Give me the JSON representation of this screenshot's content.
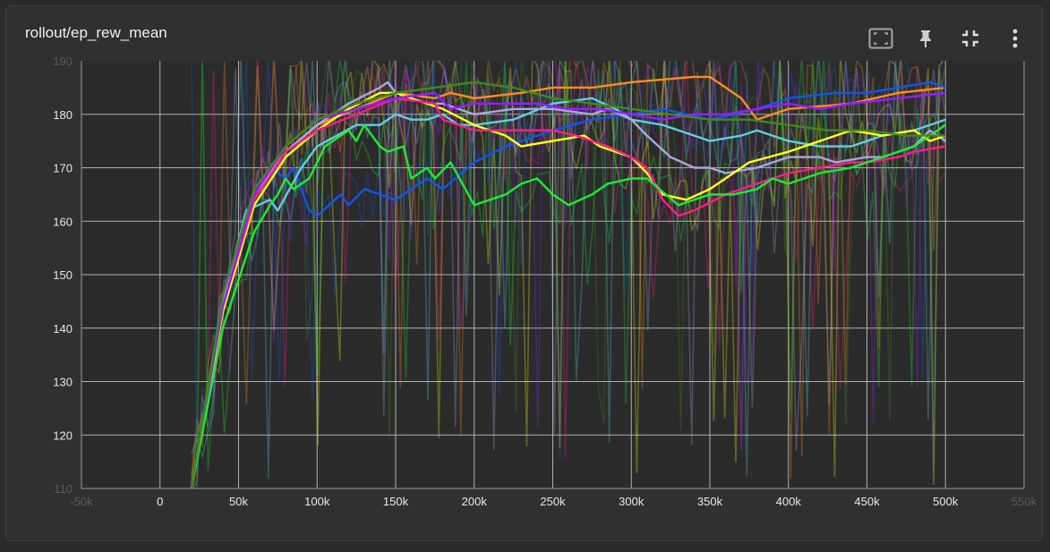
{
  "card": {
    "title": "rollout/ep_rew_mean",
    "tools": [
      {
        "name": "fit-domain-button",
        "icon": "fit-to-screen-icon"
      },
      {
        "name": "pin-button",
        "icon": "pin-icon"
      },
      {
        "name": "collapse-button",
        "icon": "fullscreen-exit-icon"
      },
      {
        "name": "more-menu-button",
        "icon": "more-vert-icon"
      }
    ]
  },
  "colors": {
    "background": "#303030",
    "plot_background": "#2b2b2b",
    "grid": "#b0b0b0",
    "tick_text": "#e8e8e8"
  },
  "chart_data": {
    "type": "line",
    "title": "rollout/ep_rew_mean",
    "xlim": [
      -50000,
      550000
    ],
    "ylim": [
      110,
      190
    ],
    "x_ticks": [
      {
        "value": -50000,
        "label": "-50k",
        "faded": true
      },
      {
        "value": 0,
        "label": "0"
      },
      {
        "value": 50000,
        "label": "50k"
      },
      {
        "value": 100000,
        "label": "100k"
      },
      {
        "value": 150000,
        "label": "150k"
      },
      {
        "value": 200000,
        "label": "200k"
      },
      {
        "value": 250000,
        "label": "250k"
      },
      {
        "value": 300000,
        "label": "300k"
      },
      {
        "value": 350000,
        "label": "350k"
      },
      {
        "value": 400000,
        "label": "400k"
      },
      {
        "value": 450000,
        "label": "450k"
      },
      {
        "value": 500000,
        "label": "500k"
      },
      {
        "value": 550000,
        "label": "550k",
        "faded": true
      }
    ],
    "y_ticks": [
      {
        "value": 110,
        "label": "110",
        "faded": true
      },
      {
        "value": 120,
        "label": "120"
      },
      {
        "value": 130,
        "label": "130"
      },
      {
        "value": 140,
        "label": "140"
      },
      {
        "value": 150,
        "label": "150"
      },
      {
        "value": 160,
        "label": "160"
      },
      {
        "value": 170,
        "label": "170"
      },
      {
        "value": 180,
        "label": "180"
      },
      {
        "value": 190,
        "label": "190",
        "faded": true
      }
    ],
    "grid": true,
    "smoothed_series": [
      {
        "color": "#ff8c1a",
        "points": [
          [
            20000,
            110
          ],
          [
            40000,
            145
          ],
          [
            60000,
            164
          ],
          [
            80000,
            173
          ],
          [
            100000,
            178
          ],
          [
            125000,
            181
          ],
          [
            150000,
            184
          ],
          [
            175000,
            183
          ],
          [
            185000,
            184
          ],
          [
            200000,
            183
          ],
          [
            230000,
            184
          ],
          [
            250000,
            185
          ],
          [
            275000,
            185
          ],
          [
            300000,
            186
          ],
          [
            340000,
            187
          ],
          [
            350000,
            187
          ],
          [
            370000,
            183
          ],
          [
            380000,
            179
          ],
          [
            400000,
            181
          ],
          [
            440000,
            182
          ],
          [
            470000,
            184
          ],
          [
            500000,
            185
          ]
        ]
      },
      {
        "color": "#1155ee",
        "points": [
          [
            20000,
            110
          ],
          [
            40000,
            145
          ],
          [
            60000,
            165
          ],
          [
            70000,
            170
          ],
          [
            80000,
            168
          ],
          [
            85000,
            170
          ],
          [
            95000,
            162
          ],
          [
            100000,
            161
          ],
          [
            115000,
            165
          ],
          [
            120000,
            163
          ],
          [
            130000,
            166
          ],
          [
            140000,
            165
          ],
          [
            150000,
            164
          ],
          [
            160000,
            166
          ],
          [
            170000,
            168
          ],
          [
            180000,
            166
          ],
          [
            200000,
            171
          ],
          [
            220000,
            174
          ],
          [
            250000,
            177
          ],
          [
            275000,
            179
          ],
          [
            300000,
            180
          ],
          [
            320000,
            181
          ],
          [
            350000,
            179
          ],
          [
            380000,
            181
          ],
          [
            400000,
            183
          ],
          [
            430000,
            184
          ],
          [
            450000,
            184
          ],
          [
            470000,
            185
          ],
          [
            490000,
            186
          ],
          [
            500000,
            185
          ]
        ]
      },
      {
        "color": "#5ed0e6",
        "points": [
          [
            20000,
            110
          ],
          [
            40000,
            145
          ],
          [
            55000,
            162
          ],
          [
            70000,
            164
          ],
          [
            75000,
            162
          ],
          [
            90000,
            170
          ],
          [
            100000,
            174
          ],
          [
            125000,
            178
          ],
          [
            140000,
            178
          ],
          [
            150000,
            180
          ],
          [
            160000,
            179
          ],
          [
            170000,
            179
          ],
          [
            180000,
            180
          ],
          [
            190000,
            178
          ],
          [
            200000,
            178
          ],
          [
            225000,
            179
          ],
          [
            250000,
            182
          ],
          [
            275000,
            183
          ],
          [
            290000,
            181
          ],
          [
            300000,
            179
          ],
          [
            320000,
            178
          ],
          [
            340000,
            176
          ],
          [
            350000,
            175
          ],
          [
            370000,
            176
          ],
          [
            380000,
            177
          ],
          [
            400000,
            175
          ],
          [
            420000,
            174
          ],
          [
            440000,
            174
          ],
          [
            460000,
            176
          ],
          [
            480000,
            177
          ],
          [
            500000,
            179
          ]
        ]
      },
      {
        "color": "#a7a9e0",
        "points": [
          [
            20000,
            110
          ],
          [
            40000,
            145
          ],
          [
            60000,
            165
          ],
          [
            80000,
            173
          ],
          [
            100000,
            178
          ],
          [
            120000,
            182
          ],
          [
            140000,
            185
          ],
          [
            145000,
            186
          ],
          [
            150000,
            184
          ],
          [
            170000,
            182
          ],
          [
            180000,
            182
          ],
          [
            200000,
            180
          ],
          [
            225000,
            181
          ],
          [
            250000,
            181
          ],
          [
            275000,
            180
          ],
          [
            285000,
            181
          ],
          [
            300000,
            179
          ],
          [
            310000,
            176
          ],
          [
            325000,
            172
          ],
          [
            340000,
            170
          ],
          [
            350000,
            170
          ],
          [
            360000,
            169
          ],
          [
            380000,
            170
          ],
          [
            400000,
            172
          ],
          [
            420000,
            172
          ],
          [
            430000,
            171
          ],
          [
            450000,
            172
          ],
          [
            460000,
            172
          ],
          [
            480000,
            174
          ],
          [
            490000,
            177
          ],
          [
            500000,
            175
          ]
        ]
      },
      {
        "color": "#ffff1a",
        "points": [
          [
            20000,
            110
          ],
          [
            40000,
            143
          ],
          [
            60000,
            163
          ],
          [
            80000,
            172
          ],
          [
            100000,
            177
          ],
          [
            120000,
            181
          ],
          [
            140000,
            184
          ],
          [
            150000,
            184
          ],
          [
            170000,
            182
          ],
          [
            180000,
            181
          ],
          [
            200000,
            178
          ],
          [
            220000,
            176
          ],
          [
            230000,
            174
          ],
          [
            250000,
            175
          ],
          [
            270000,
            176
          ],
          [
            280000,
            174
          ],
          [
            300000,
            172
          ],
          [
            310000,
            169
          ],
          [
            320000,
            165
          ],
          [
            335000,
            164
          ],
          [
            350000,
            166
          ],
          [
            375000,
            171
          ],
          [
            400000,
            173
          ],
          [
            420000,
            175
          ],
          [
            440000,
            177
          ],
          [
            460000,
            176
          ],
          [
            480000,
            177
          ],
          [
            490000,
            175
          ],
          [
            500000,
            176
          ]
        ]
      },
      {
        "color": "#ff1a8c",
        "points": [
          [
            20000,
            110
          ],
          [
            40000,
            144
          ],
          [
            60000,
            164
          ],
          [
            80000,
            173
          ],
          [
            100000,
            177
          ],
          [
            125000,
            180
          ],
          [
            150000,
            183
          ],
          [
            175000,
            182
          ],
          [
            180000,
            179
          ],
          [
            200000,
            177
          ],
          [
            225000,
            177
          ],
          [
            250000,
            177
          ],
          [
            265000,
            176
          ],
          [
            275000,
            175
          ],
          [
            285000,
            174
          ],
          [
            300000,
            172
          ],
          [
            310000,
            170
          ],
          [
            320000,
            164
          ],
          [
            330000,
            161
          ],
          [
            340000,
            162
          ],
          [
            360000,
            165
          ],
          [
            380000,
            167
          ],
          [
            400000,
            169
          ],
          [
            420000,
            170
          ],
          [
            440000,
            171
          ],
          [
            450000,
            171
          ],
          [
            470000,
            172
          ],
          [
            480000,
            173
          ],
          [
            500000,
            174
          ]
        ]
      },
      {
        "color": "#9b1aff",
        "points": [
          [
            20000,
            110
          ],
          [
            40000,
            144
          ],
          [
            60000,
            165
          ],
          [
            80000,
            174
          ],
          [
            100000,
            179
          ],
          [
            125000,
            181
          ],
          [
            150000,
            183
          ],
          [
            175000,
            184
          ],
          [
            185000,
            181
          ],
          [
            200000,
            182
          ],
          [
            220000,
            182
          ],
          [
            240000,
            182
          ],
          [
            260000,
            181
          ],
          [
            280000,
            181
          ],
          [
            300000,
            180
          ],
          [
            320000,
            179
          ],
          [
            340000,
            180
          ],
          [
            360000,
            180
          ],
          [
            380000,
            181
          ],
          [
            400000,
            182
          ],
          [
            420000,
            181
          ],
          [
            440000,
            182
          ],
          [
            470000,
            183
          ],
          [
            500000,
            184
          ]
        ]
      },
      {
        "color": "#1aee33",
        "points": [
          [
            20000,
            110
          ],
          [
            40000,
            140
          ],
          [
            60000,
            158
          ],
          [
            70000,
            163
          ],
          [
            75000,
            165
          ],
          [
            80000,
            168
          ],
          [
            85000,
            166
          ],
          [
            95000,
            168
          ],
          [
            105000,
            174
          ],
          [
            120000,
            177
          ],
          [
            125000,
            175
          ],
          [
            130000,
            178
          ],
          [
            140000,
            174
          ],
          [
            145000,
            173
          ],
          [
            155000,
            174
          ],
          [
            160000,
            168
          ],
          [
            170000,
            170
          ],
          [
            175000,
            168
          ],
          [
            185000,
            171
          ],
          [
            200000,
            163
          ],
          [
            220000,
            165
          ],
          [
            230000,
            167
          ],
          [
            240000,
            168
          ],
          [
            250000,
            165
          ],
          [
            260000,
            163
          ],
          [
            275000,
            165
          ],
          [
            285000,
            167
          ],
          [
            300000,
            168
          ],
          [
            310000,
            168
          ],
          [
            330000,
            163
          ],
          [
            340000,
            164
          ],
          [
            350000,
            165
          ],
          [
            365000,
            165
          ],
          [
            380000,
            166
          ],
          [
            390000,
            168
          ],
          [
            400000,
            167
          ],
          [
            420000,
            169
          ],
          [
            440000,
            170
          ],
          [
            460000,
            172
          ],
          [
            480000,
            174
          ],
          [
            500000,
            178
          ]
        ]
      },
      {
        "color": "#3d8a1a",
        "points": [
          [
            20000,
            110
          ],
          [
            40000,
            146
          ],
          [
            60000,
            166
          ],
          [
            80000,
            174
          ],
          [
            100000,
            179
          ],
          [
            125000,
            182
          ],
          [
            150000,
            184
          ],
          [
            175000,
            185
          ],
          [
            200000,
            186
          ],
          [
            225000,
            185
          ],
          [
            250000,
            183
          ],
          [
            275000,
            182
          ],
          [
            300000,
            181
          ],
          [
            325000,
            180
          ],
          [
            350000,
            179
          ],
          [
            375000,
            179
          ],
          [
            400000,
            178
          ],
          [
            425000,
            177
          ],
          [
            450000,
            177
          ],
          [
            475000,
            176
          ],
          [
            500000,
            176
          ]
        ]
      }
    ]
  }
}
